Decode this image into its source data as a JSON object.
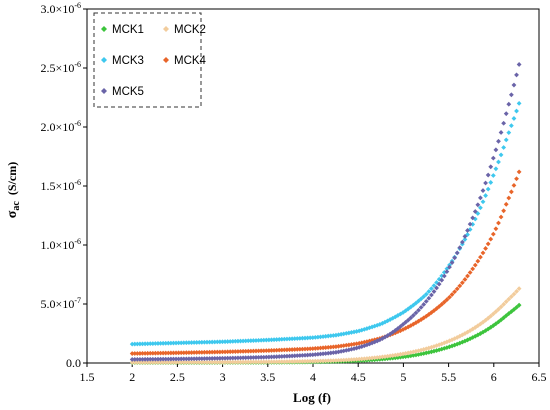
{
  "chart_data": {
    "type": "scatter",
    "title": "",
    "xlabel": "Log (f)",
    "ylabel_symbol": "σ",
    "ylabel_sub": "ac",
    "ylabel_unit": "(S/cm)",
    "xlim": [
      1.5,
      6.5
    ],
    "ylim": [
      0,
      3e-06
    ],
    "grid": false,
    "legend_position": "top-left",
    "x_ticks": [
      {
        "value": 1.5,
        "label": "1.5"
      },
      {
        "value": 2,
        "label": "2"
      },
      {
        "value": 2.5,
        "label": "2.5"
      },
      {
        "value": 3,
        "label": "3"
      },
      {
        "value": 3.5,
        "label": "3.5"
      },
      {
        "value": 4,
        "label": "4"
      },
      {
        "value": 4.5,
        "label": "4.5"
      },
      {
        "value": 5,
        "label": "5"
      },
      {
        "value": 5.5,
        "label": "5.5"
      },
      {
        "value": 6,
        "label": "6"
      },
      {
        "value": 6.5,
        "label": "6.5"
      }
    ],
    "y_ticks": [
      {
        "value": 0,
        "mantissa": "0.0",
        "exp": ""
      },
      {
        "value": 5e-07,
        "mantissa": "5.0×10",
        "exp": "-7"
      },
      {
        "value": 1e-06,
        "mantissa": "1.0×10",
        "exp": "-6"
      },
      {
        "value": 1.5e-06,
        "mantissa": "1.5×10",
        "exp": "-6"
      },
      {
        "value": 2e-06,
        "mantissa": "2.0×10",
        "exp": "-6"
      },
      {
        "value": 2.5e-06,
        "mantissa": "2.5×10",
        "exp": "-6"
      },
      {
        "value": 3e-06,
        "mantissa": "3.0×10",
        "exp": "-6"
      }
    ],
    "x": [
      2.0,
      2.5,
      3.0,
      3.5,
      4.0,
      4.25,
      4.5,
      4.75,
      5.0,
      5.25,
      5.5,
      5.75,
      6.0,
      6.15,
      6.28
    ],
    "series": [
      {
        "name": "MCK1",
        "color": "#3cc43c",
        "values": [
          3e-09,
          3e-09,
          4e-09,
          5e-09,
          9e-09,
          1.3e-08,
          2e-08,
          3.2e-08,
          5.2e-08,
          8.5e-08,
          1.35e-07,
          2.1e-07,
          3.2e-07,
          4.1e-07,
          4.9e-07
        ]
      },
      {
        "name": "MCK2",
        "color": "#f2cc9c",
        "values": [
          6e-09,
          6e-09,
          7e-09,
          9e-09,
          1.5e-08,
          2.1e-08,
          3.2e-08,
          5e-08,
          7.8e-08,
          1.2e-07,
          1.85e-07,
          2.8e-07,
          4.2e-07,
          5.3e-07,
          6.3e-07
        ]
      },
      {
        "name": "MCK3",
        "color": "#3ec8ee",
        "values": [
          1.6e-07,
          1.7e-07,
          1.8e-07,
          1.95e-07,
          2.15e-07,
          2.35e-07,
          2.7e-07,
          3.3e-07,
          4.3e-07,
          5.8e-07,
          8.2e-07,
          1.15e-06,
          1.6e-06,
          1.92e-06,
          2.2e-06
        ]
      },
      {
        "name": "MCK4",
        "color": "#e8652a",
        "values": [
          8e-08,
          8.6e-08,
          9.4e-08,
          1.05e-07,
          1.22e-07,
          1.38e-07,
          1.65e-07,
          2.1e-07,
          2.85e-07,
          3.95e-07,
          5.5e-07,
          7.8e-07,
          1.1e-06,
          1.37e-06,
          1.62e-06
        ]
      },
      {
        "name": "MCK5",
        "color": "#6a64a8",
        "values": [
          3e-08,
          3.4e-08,
          4e-08,
          5e-08,
          7e-08,
          9e-08,
          1.3e-07,
          2e-07,
          3.3e-07,
          5.2e-07,
          8e-07,
          1.2e-06,
          1.75e-06,
          2.15e-06,
          2.53e-06
        ]
      }
    ]
  }
}
